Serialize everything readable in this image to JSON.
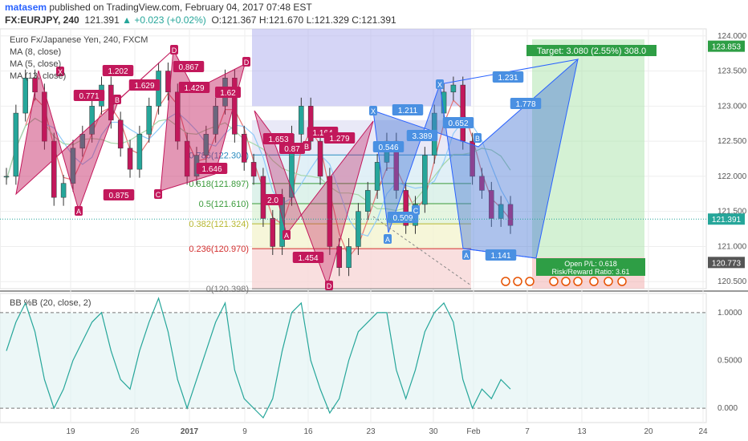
{
  "header": {
    "author": "matasem",
    "published_text": "published on TradingView.com, February 04, 2017 07:48 EST",
    "symbol": "FX:EURJPY, 240",
    "last": "121.391",
    "change": "+0.023 (+0.02%)",
    "open": "O:121.367",
    "high": "H:121.670",
    "low": "L:121.329",
    "close": "C:121.391"
  },
  "legend": {
    "instrument": "Euro Fx/Japanese Yen, 240, FXCM",
    "ma1": "MA (8, close)",
    "ma2": "MA (5, close)",
    "ma3": "MA (13, close)",
    "osc": "BB %B (20, close, 2)"
  },
  "colors": {
    "up": "#26a69a",
    "down": "#c2185b",
    "pattern_pink": "#c2185b",
    "pattern_blue": "#2962ff",
    "target_green": "#2e9e45"
  },
  "chart_data": [
    {
      "type": "line",
      "title": "Euro Fx/Japanese Yen, 240, FXCM",
      "x_ticks": [
        "19",
        "26",
        "2017",
        "9",
        "16",
        "23",
        "30",
        "Feb",
        "7",
        "13",
        "20",
        "24"
      ],
      "ylim": [
        120.4,
        124.1
      ],
      "y_ticks": [
        120.5,
        121.0,
        121.5,
        122.0,
        122.5,
        123.0,
        123.5,
        124.0
      ],
      "price_labels": {
        "last": "121.391",
        "target": "123.853",
        "stop": "120.773"
      },
      "series": [
        {
          "values": [
            122.0,
            122.9,
            123.4,
            123.2,
            122.5,
            121.7,
            121.9,
            122.4,
            122.6,
            123.0,
            123.3,
            122.8,
            122.4,
            122.1,
            122.6,
            123.0,
            123.5,
            123.2,
            122.5,
            122.0,
            122.3,
            122.6,
            123.0,
            123.4,
            122.6,
            122.2,
            122.0,
            121.4,
            121.0,
            121.7,
            122.6,
            123.0,
            122.5,
            122.0,
            121.0,
            120.7,
            121.0,
            121.5,
            121.8,
            122.2,
            122.5,
            121.8,
            121.3,
            121.6,
            122.3,
            122.9,
            123.2,
            123.3,
            122.5,
            122.0,
            121.8,
            121.4,
            121.6,
            121.3
          ]
        }
      ],
      "fib_levels": [
        {
          "label": "0.236(120.970)",
          "value": 120.97
        },
        {
          "label": "0.382(121.324)",
          "value": 121.324
        },
        {
          "label": "0.5(121.610)",
          "value": 121.61
        },
        {
          "label": "0.618(121.897)",
          "value": 121.897
        },
        {
          "label": "0.786(122.304)",
          "value": 122.304
        },
        {
          "label": "0(120.398)",
          "value": 120.398
        }
      ],
      "pattern_ratios": [
        "1.202",
        "1.629",
        "0.771",
        "0.875",
        "0.867",
        "1.429",
        "1.62",
        "1.646",
        "1.164",
        "1.279",
        "1.653",
        "0.87",
        "2.0",
        "1.454",
        "1.211",
        "0.546",
        "3.389",
        "0.652",
        "0.509",
        "1.231",
        "1.778",
        "1.141"
      ],
      "point_labels": [
        "X",
        "A",
        "B",
        "C",
        "D"
      ],
      "target_label": "Target: 3.080 (2.55%) 308.0",
      "stop_label": "Open P/L: 0.618",
      "risk_reward_label": "Risk/Reward Ratio: 3.61"
    },
    {
      "type": "line",
      "title": "BB %B (20, close, 2)",
      "ylim": [
        -0.15,
        1.2
      ],
      "y_ticks": [
        "0.000",
        "0.5000",
        "1.0000"
      ],
      "series": [
        {
          "values": [
            0.6,
            0.9,
            1.1,
            0.8,
            0.3,
            0.0,
            0.2,
            0.5,
            0.7,
            0.9,
            1.0,
            0.6,
            0.3,
            0.2,
            0.6,
            0.9,
            1.15,
            0.8,
            0.3,
            0.0,
            0.3,
            0.6,
            0.9,
            1.1,
            0.4,
            0.1,
            0.0,
            -0.1,
            0.1,
            0.6,
            1.0,
            1.1,
            0.5,
            0.2,
            -0.05,
            0.1,
            0.5,
            0.8,
            0.9,
            1.0,
            1.0,
            0.4,
            0.1,
            0.4,
            0.8,
            1.0,
            1.1,
            0.9,
            0.3,
            0.0,
            0.2,
            0.1,
            0.3,
            0.2
          ]
        }
      ]
    }
  ]
}
